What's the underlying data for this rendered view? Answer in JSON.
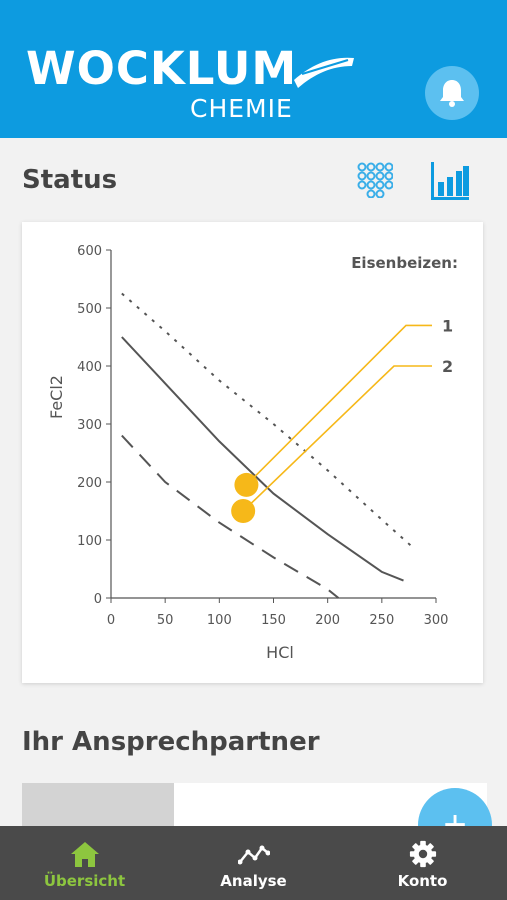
{
  "header": {
    "logo_word": "WOCKLUM",
    "logo_sub": "CHEMIE",
    "notification_icon": "bell-icon"
  },
  "status": {
    "title": "Status",
    "grid_view_icon": "grid-icon",
    "chart_view_icon": "bar-chart-icon"
  },
  "chart_data": {
    "type": "line",
    "xlabel": "HCl",
    "ylabel": "FeCl2",
    "xlim": [
      0,
      300
    ],
    "ylim": [
      0,
      600
    ],
    "x_ticks": [
      0,
      50,
      100,
      150,
      200,
      250,
      300
    ],
    "y_ticks": [
      0,
      100,
      200,
      300,
      400,
      500,
      600
    ],
    "legend_title": "Eisenbeizen:",
    "series": [
      {
        "style": "dotted",
        "color": "#555555",
        "x": [
          10,
          50,
          100,
          150,
          200,
          250,
          280
        ],
        "y": [
          525,
          460,
          375,
          300,
          220,
          135,
          85
        ]
      },
      {
        "style": "solid",
        "color": "#555555",
        "x": [
          10,
          50,
          100,
          150,
          200,
          250,
          270
        ],
        "y": [
          450,
          370,
          270,
          180,
          110,
          45,
          30
        ]
      },
      {
        "style": "dashed",
        "color": "#555555",
        "x": [
          10,
          50,
          100,
          150,
          200,
          210
        ],
        "y": [
          280,
          200,
          130,
          70,
          15,
          0
        ]
      }
    ],
    "points": [
      {
        "label": "1",
        "x": 125,
        "y": 195,
        "color": "#f6b819"
      },
      {
        "label": "2",
        "x": 122,
        "y": 150,
        "color": "#f6b819"
      }
    ]
  },
  "contact": {
    "title": "Ihr Ansprechpartner",
    "add_icon": "plus-icon",
    "add_symbol": "+"
  },
  "tabs": [
    {
      "label": "Übersicht",
      "icon": "home-icon",
      "active": true
    },
    {
      "label": "Analyse",
      "icon": "trend-icon",
      "active": false
    },
    {
      "label": "Konto",
      "icon": "gear-icon",
      "active": false
    }
  ]
}
